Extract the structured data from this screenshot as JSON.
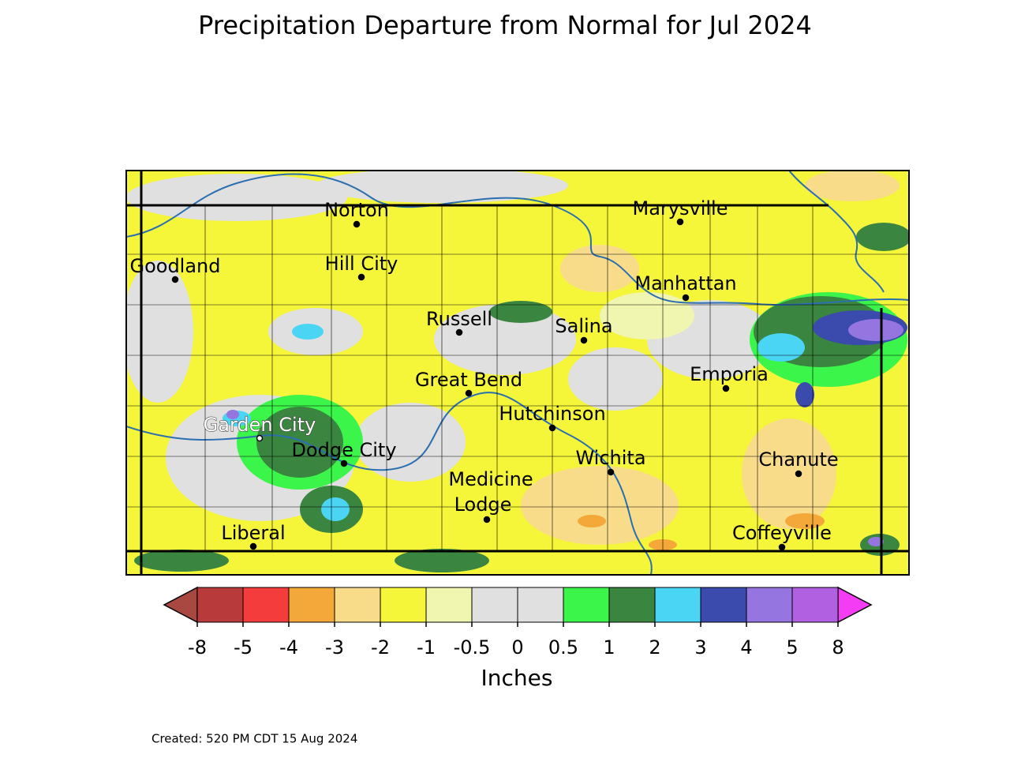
{
  "title": "Precipitation Departure from Normal for Jul 2024",
  "cities": [
    {
      "lines": [
        "Norton"
      ]
    },
    {
      "lines": [
        "Goodland"
      ]
    },
    {
      "lines": [
        "Hill City"
      ]
    },
    {
      "lines": [
        "Marysville"
      ]
    },
    {
      "lines": [
        "Manhattan"
      ]
    },
    {
      "lines": [
        "Russell"
      ]
    },
    {
      "lines": [
        "Salina"
      ]
    },
    {
      "lines": [
        "Great Bend"
      ]
    },
    {
      "lines": [
        "Emporia"
      ]
    },
    {
      "lines": [
        "Hutchinson"
      ]
    },
    {
      "lines": [
        "Garden City"
      ]
    },
    {
      "lines": [
        "Dodge City"
      ]
    },
    {
      "lines": [
        "Wichita"
      ]
    },
    {
      "lines": [
        "Chanute"
      ]
    },
    {
      "lines": [
        "Medicine",
        "Lodge"
      ]
    },
    {
      "lines": [
        "Liberal"
      ]
    },
    {
      "lines": [
        "Coffeyville"
      ]
    }
  ],
  "colorbar": {
    "boundaries": [
      -8,
      -5,
      -4,
      -3,
      -2,
      -1,
      -0.5,
      0,
      0.5,
      1,
      2,
      3,
      4,
      5,
      8
    ],
    "colors": [
      "#b83a3a",
      "#f53c3c",
      "#f5a83a",
      "#f8dc8a",
      "#f5f53a",
      "#f0f5b0",
      "#e0e0e0",
      "#e0e0e0",
      "#3cf54a",
      "#3a8540",
      "#4ad5f5",
      "#3a4aad",
      "#9575e0",
      "#b060e0"
    ],
    "extend_colors": [
      "#a84840",
      "#f53cf5"
    ],
    "label": "Inches"
  },
  "footer": "Created: 520 PM CDT 15 Aug 2024"
}
